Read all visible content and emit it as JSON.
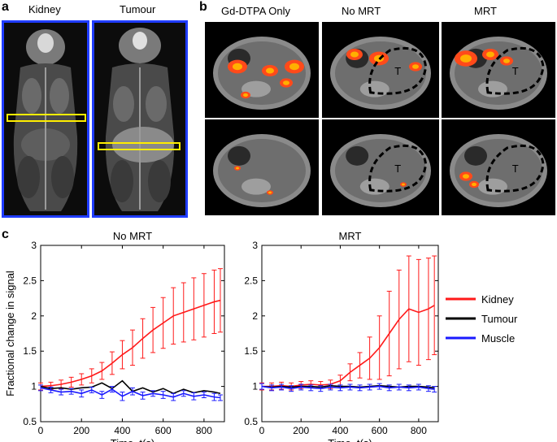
{
  "panels": {
    "a": {
      "letter": "a",
      "columns": [
        {
          "label": "Kidney"
        },
        {
          "label": "Tumour"
        }
      ]
    },
    "b": {
      "letter": "b",
      "columns": [
        {
          "label": "Gd-DTPA Only"
        },
        {
          "label": "No MRT"
        },
        {
          "label": "MRT"
        }
      ],
      "tumour_marker": "T"
    },
    "c": {
      "letter": "c"
    }
  },
  "colors": {
    "kidney": "#ff1a1a",
    "tumour": "#000000",
    "muscle": "#1a1aff",
    "frame": "#1f3cff",
    "roi": "#ffee00"
  },
  "chart_data": [
    {
      "type": "line",
      "title": "No MRT",
      "xlabel": "Time, t(s)",
      "ylabel": "Fractional change in signal",
      "xlim": [
        0,
        900
      ],
      "ylim": [
        0.5,
        3
      ],
      "xticks": [
        "0",
        "200",
        "400",
        "600",
        "800"
      ],
      "yticks": [
        "0.5",
        "1",
        "1.5",
        "2",
        "2.5",
        "3"
      ],
      "x": [
        0,
        50,
        100,
        150,
        200,
        250,
        300,
        350,
        400,
        450,
        500,
        550,
        600,
        650,
        700,
        750,
        800,
        850,
        880
      ],
      "series": [
        {
          "name": "Kidney",
          "color": "#ff1a1a",
          "values": [
            1.0,
            1.01,
            1.03,
            1.06,
            1.1,
            1.15,
            1.22,
            1.33,
            1.45,
            1.55,
            1.68,
            1.8,
            1.9,
            2.0,
            2.05,
            2.1,
            2.15,
            2.2,
            2.22
          ],
          "error": [
            0.05,
            0.05,
            0.06,
            0.07,
            0.08,
            0.1,
            0.12,
            0.16,
            0.2,
            0.25,
            0.28,
            0.32,
            0.36,
            0.4,
            0.42,
            0.44,
            0.45,
            0.45,
            0.45
          ]
        },
        {
          "name": "Tumour",
          "color": "#000000",
          "values": [
            1.0,
            0.97,
            0.98,
            0.96,
            0.98,
            0.99,
            1.05,
            0.97,
            1.08,
            0.93,
            0.98,
            0.92,
            0.97,
            0.9,
            0.96,
            0.91,
            0.94,
            0.92,
            0.9
          ],
          "error": []
        },
        {
          "name": "Muscle",
          "color": "#1a1aff",
          "values": [
            0.98,
            0.95,
            0.92,
            0.93,
            0.9,
            0.95,
            0.88,
            0.96,
            0.86,
            0.93,
            0.87,
            0.9,
            0.88,
            0.85,
            0.9,
            0.86,
            0.88,
            0.85,
            0.84
          ],
          "error": [
            0.04,
            0.04,
            0.04,
            0.04,
            0.05,
            0.04,
            0.05,
            0.04,
            0.06,
            0.05,
            0.05,
            0.04,
            0.05,
            0.05,
            0.04,
            0.05,
            0.04,
            0.05,
            0.04
          ]
        }
      ]
    },
    {
      "type": "line",
      "title": "MRT",
      "xlabel": "Time, t(s)",
      "ylabel": "",
      "xlim": [
        0,
        900
      ],
      "ylim": [
        0.5,
        3
      ],
      "xticks": [
        "0",
        "200",
        "400",
        "600",
        "800"
      ],
      "yticks": [
        "0.5",
        "1",
        "1.5",
        "2",
        "2.5",
        "3"
      ],
      "x": [
        0,
        50,
        100,
        150,
        200,
        250,
        300,
        350,
        400,
        450,
        500,
        550,
        600,
        650,
        700,
        750,
        800,
        850,
        880
      ],
      "series": [
        {
          "name": "Kidney",
          "color": "#ff1a1a",
          "values": [
            1.0,
            1.0,
            1.01,
            1.0,
            1.02,
            1.03,
            1.02,
            1.03,
            1.08,
            1.2,
            1.3,
            1.4,
            1.55,
            1.75,
            1.95,
            2.1,
            2.05,
            2.1,
            2.15
          ],
          "error": [
            0.05,
            0.05,
            0.05,
            0.05,
            0.05,
            0.05,
            0.05,
            0.06,
            0.08,
            0.12,
            0.18,
            0.3,
            0.45,
            0.6,
            0.7,
            0.75,
            0.75,
            0.72,
            0.7
          ]
        },
        {
          "name": "Tumour",
          "color": "#000000",
          "values": [
            1.0,
            0.99,
            1.0,
            0.99,
            1.0,
            1.0,
            0.99,
            1.01,
            1.0,
            1.0,
            0.99,
            1.0,
            1.01,
            1.0,
            0.99,
            1.0,
            1.0,
            0.99,
            0.98
          ],
          "error": []
        },
        {
          "name": "Muscle",
          "color": "#1a1aff",
          "values": [
            1.0,
            0.98,
            0.99,
            0.97,
            0.99,
            0.98,
            0.97,
            0.99,
            0.98,
            0.99,
            0.98,
            0.99,
            1.0,
            0.98,
            0.99,
            0.98,
            0.99,
            0.97,
            0.96
          ],
          "error": [
            0.04,
            0.04,
            0.04,
            0.04,
            0.04,
            0.04,
            0.04,
            0.04,
            0.04,
            0.04,
            0.04,
            0.04,
            0.04,
            0.04,
            0.04,
            0.04,
            0.04,
            0.04,
            0.04
          ]
        }
      ]
    }
  ],
  "legend": [
    {
      "label": "Kidney",
      "color": "#ff1a1a"
    },
    {
      "label": "Tumour",
      "color": "#000000"
    },
    {
      "label": "Muscle",
      "color": "#1a1aff"
    }
  ]
}
